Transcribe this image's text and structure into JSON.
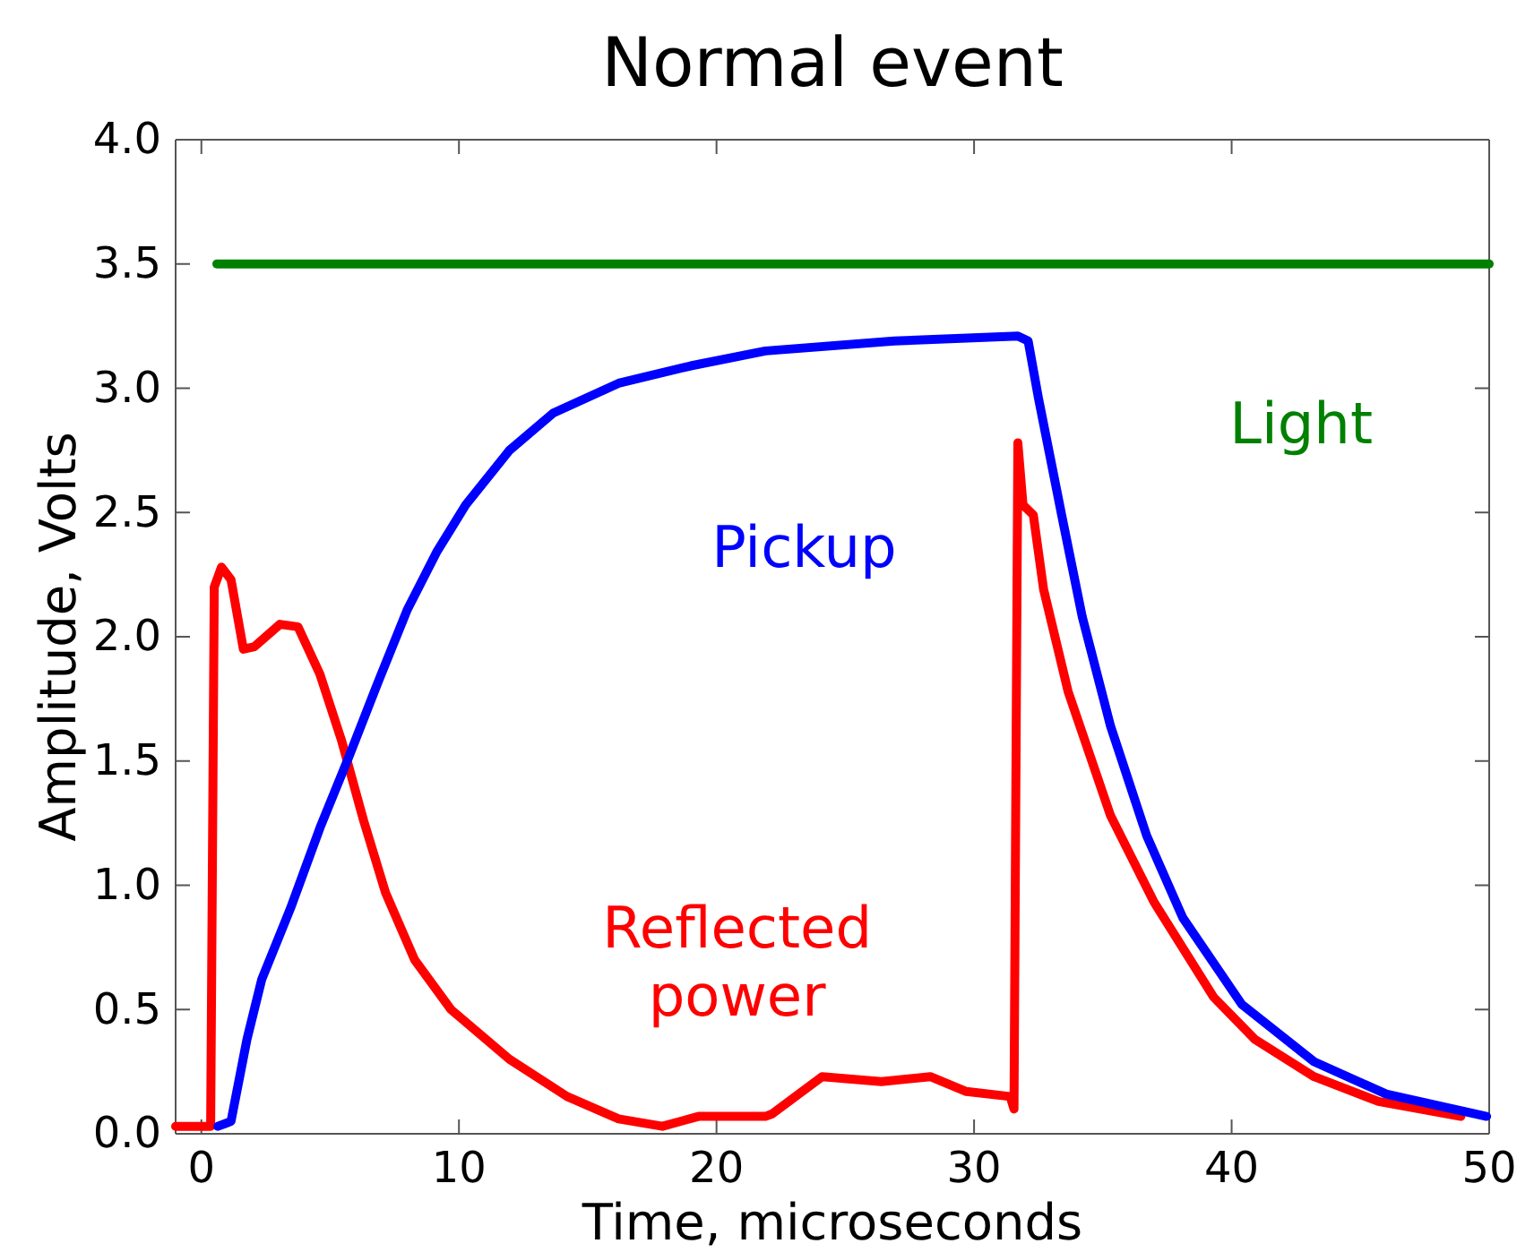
{
  "chart_data": {
    "type": "line",
    "title": "Normal event",
    "xlabel": "Time, microseconds",
    "ylabel": "Amplitude, Volts",
    "xlim": [
      -1,
      50
    ],
    "xticks": [
      0,
      10,
      20,
      30,
      40,
      50
    ],
    "ylim": [
      0,
      4
    ],
    "yticks": [
      {
        "value": 0,
        "label": "0.0"
      },
      {
        "value": 0.5,
        "label": "0.5"
      },
      {
        "value": 1,
        "label": "1.0"
      },
      {
        "value": 1.5,
        "label": "1.5"
      },
      {
        "value": 2,
        "label": "2.0"
      },
      {
        "value": 2.5,
        "label": "2.5"
      },
      {
        "value": 3,
        "label": "3.0"
      },
      {
        "value": 3.5,
        "label": "3.5"
      },
      {
        "value": 4,
        "label": "4.0"
      }
    ],
    "grid": false,
    "legend": false,
    "marker": "none",
    "line_style": "solid",
    "series": [
      {
        "name": "Reflected power",
        "color": "#ff0000",
        "x": [
          -1,
          0.36,
          0.5,
          0.78,
          1.15,
          1.63,
          2.06,
          3.05,
          3.75,
          4.6,
          5.45,
          6.3,
          7.15,
          8.28,
          9.69,
          11.96,
          14.2,
          16.2,
          17.9,
          19.3,
          21.9,
          22.16,
          24.1,
          26.4,
          28.3,
          29.7,
          31.4,
          31.55,
          31.7,
          31.9,
          32.3,
          32.7,
          33.65,
          35.3,
          37.0,
          39.3,
          40.9,
          43.2,
          45.7,
          48.9
        ],
        "values": [
          0.03,
          0.03,
          2.2,
          2.28,
          2.23,
          1.95,
          1.96,
          2.05,
          2.04,
          1.85,
          1.58,
          1.26,
          0.97,
          0.7,
          0.5,
          0.3,
          0.15,
          0.06,
          0.03,
          0.07,
          0.07,
          0.08,
          0.23,
          0.21,
          0.23,
          0.17,
          0.15,
          0.1,
          2.78,
          2.53,
          2.49,
          2.19,
          1.78,
          1.28,
          0.93,
          0.55,
          0.38,
          0.23,
          0.13,
          0.07
        ]
      },
      {
        "name": "Pickup",
        "color": "#0000ff",
        "x": [
          0.64,
          1.15,
          1.77,
          2.34,
          3.47,
          4.6,
          5.74,
          6.87,
          8.0,
          9.13,
          10.26,
          11.96,
          13.66,
          16.2,
          19.0,
          21.9,
          26.9,
          31.7,
          32.1,
          32.5,
          33.4,
          34.2,
          35.3,
          36.7,
          38.1,
          40.4,
          43.2,
          46.0,
          49.9
        ],
        "values": [
          0.03,
          0.05,
          0.38,
          0.62,
          0.91,
          1.23,
          1.52,
          1.82,
          2.11,
          2.34,
          2.53,
          2.75,
          2.9,
          3.02,
          3.09,
          3.15,
          3.19,
          3.21,
          3.19,
          2.96,
          2.49,
          2.08,
          1.64,
          1.2,
          0.87,
          0.52,
          0.29,
          0.16,
          0.07
        ]
      },
      {
        "name": "Light",
        "color": "#008000",
        "x": [
          0.6,
          50
        ],
        "values": [
          3.5,
          3.5
        ]
      }
    ]
  }
}
